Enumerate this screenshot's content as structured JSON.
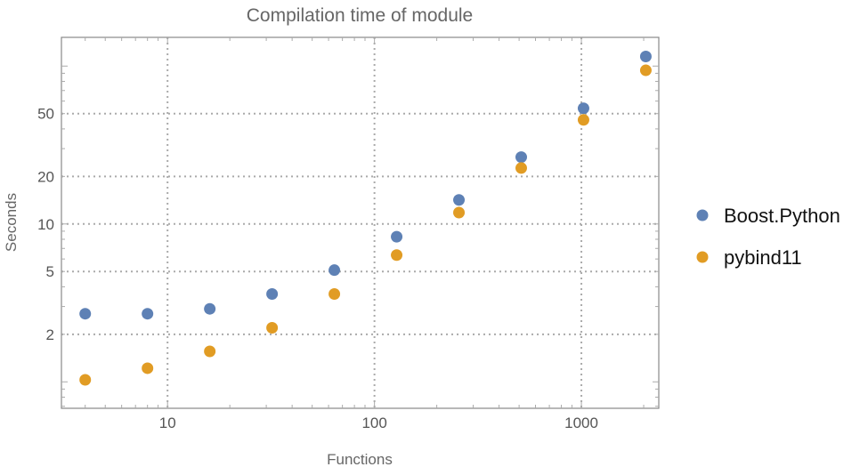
{
  "chart_data": {
    "type": "scatter",
    "title": "Compilation time of module",
    "xlabel": "Functions",
    "ylabel": "Seconds",
    "xscale": "log",
    "yscale": "log",
    "xlim": [
      3.07,
      2366
    ],
    "ylim": [
      0.68,
      152
    ],
    "xticks": [
      10,
      100,
      1000
    ],
    "xtick_labels": [
      "10",
      "100",
      "1000"
    ],
    "yticks": [
      2,
      5,
      10,
      20,
      50
    ],
    "ytick_labels": [
      "2",
      "5",
      "10",
      "20",
      "50"
    ],
    "grid": true,
    "legend_position": "right",
    "x": [
      4,
      8,
      16,
      32,
      64,
      128,
      256,
      512,
      1024,
      2048
    ],
    "series": [
      {
        "name": "Boost.Python",
        "color": "#5E81B5",
        "values": [
          2.7,
          2.7,
          2.9,
          3.6,
          5.1,
          8.3,
          14.2,
          26.5,
          54,
          115
        ]
      },
      {
        "name": "pybind11",
        "color": "#E19C24",
        "values": [
          1.03,
          1.22,
          1.56,
          2.2,
          3.6,
          6.35,
          11.8,
          22.6,
          45.6,
          94
        ]
      }
    ]
  }
}
